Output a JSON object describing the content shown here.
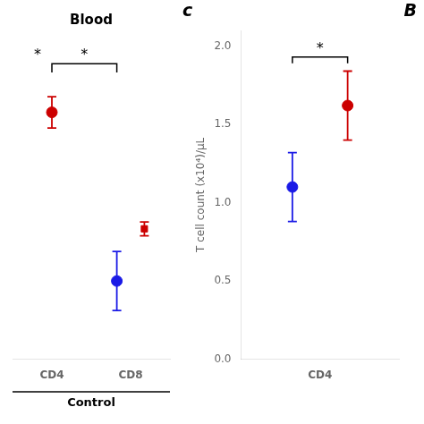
{
  "chart_data": [
    {
      "type": "scatter",
      "title": "Blood",
      "categories": [
        "CD4",
        "CD8"
      ],
      "series": [
        {
          "color": "#1A1AE6",
          "marker": "circle",
          "values": [
            null,
            0.95
          ],
          "errors": [
            null,
            0.17
          ]
        },
        {
          "color": "#CC0000",
          "marker": "circle",
          "values": [
            1.92,
            null
          ],
          "errors": [
            0.09,
            null
          ]
        },
        {
          "color": "#CC0000",
          "marker": "square",
          "values": [
            null,
            1.25
          ],
          "errors": [
            null,
            0.04
          ]
        }
      ],
      "ylim": [
        0.5,
        2.35
      ],
      "tick_labels": "x",
      "grid": false,
      "significance": [
        {
          "from": {
            "series": 1,
            "category": "CD4"
          },
          "to": {
            "series": 0,
            "category": "CD8"
          },
          "y": 2.2,
          "tick": 0.05,
          "label": "*"
        }
      ],
      "annotations": [
        {
          "text": "*",
          "x": "CD4",
          "y": 2.2
        }
      ],
      "group_label": "Control"
    },
    {
      "type": "scatter",
      "categories": [
        "CD4"
      ],
      "ylabel": "T cell count (x10⁴)/μL",
      "series": [
        {
          "color": "#1A1AE6",
          "marker": "circle",
          "values": [
            1.1
          ],
          "errors": [
            0.22
          ]
        },
        {
          "color": "#CC0000",
          "marker": "circle",
          "values": [
            1.62
          ],
          "errors": [
            0.22
          ]
        }
      ],
      "ylim": [
        0.0,
        2.1
      ],
      "yticks": [
        {
          "value": 0.0,
          "label": "0.0"
        },
        {
          "value": 0.5,
          "label": "0.5"
        },
        {
          "value": 1.0,
          "label": "1.0"
        },
        {
          "value": 1.5,
          "label": "1.5"
        },
        {
          "value": 2.0,
          "label": "2.0"
        }
      ],
      "grid": false,
      "significance": [
        {
          "from": {
            "series": 0,
            "category": "CD4"
          },
          "to": {
            "series": 1,
            "category": "CD4"
          },
          "y": 1.93,
          "tick": 0.04,
          "label": "*"
        }
      ],
      "panel_label": "c",
      "annotations": [
        {
          "text": "B"
        }
      ]
    }
  ]
}
